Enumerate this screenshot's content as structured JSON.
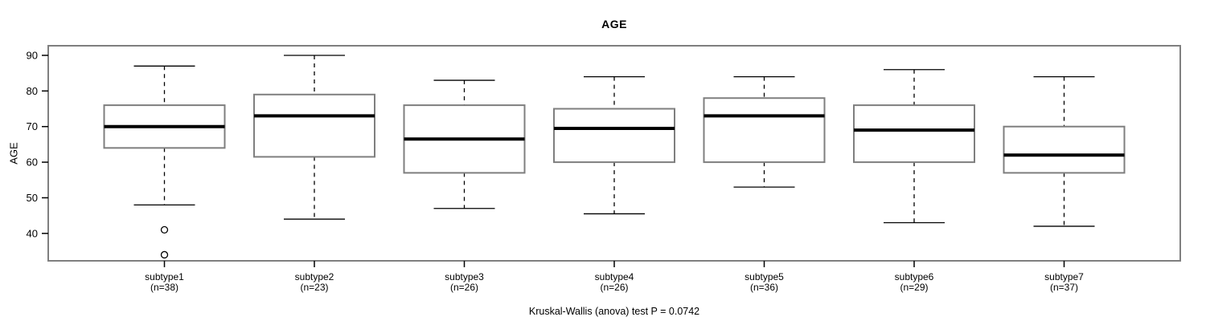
{
  "chart_data": {
    "type": "boxplot",
    "title": "AGE",
    "ylabel": "AGE",
    "xlabel": "",
    "footnote": "Kruskal-Wallis (anova) test P = 0.0742",
    "yticks": [
      40,
      50,
      60,
      70,
      80,
      90
    ],
    "ylim": [
      32.3,
      92.7
    ],
    "grid": false,
    "legend": "none",
    "categories": [
      "subtype1",
      "subtype2",
      "subtype3",
      "subtype4",
      "subtype5",
      "subtype6",
      "subtype7"
    ],
    "group_counts": [
      "(n=38)",
      "(n=23)",
      "(n=26)",
      "(n=26)",
      "(n=36)",
      "(n=29)",
      "(n=37)"
    ],
    "series": [
      {
        "label": "subtype1",
        "n": 38,
        "whisker_low": 48,
        "q1": 64,
        "median": 70,
        "q3": 76,
        "whisker_high": 87,
        "outliers": [
          41,
          34
        ]
      },
      {
        "label": "subtype2",
        "n": 23,
        "whisker_low": 44,
        "q1": 61.5,
        "median": 73,
        "q3": 79,
        "whisker_high": 90,
        "outliers": []
      },
      {
        "label": "subtype3",
        "n": 26,
        "whisker_low": 47,
        "q1": 57,
        "median": 66.5,
        "q3": 76,
        "whisker_high": 83,
        "outliers": []
      },
      {
        "label": "subtype4",
        "n": 26,
        "whisker_low": 45.5,
        "q1": 60,
        "median": 69.5,
        "q3": 75,
        "whisker_high": 84,
        "outliers": []
      },
      {
        "label": "subtype5",
        "n": 36,
        "whisker_low": 53,
        "q1": 60,
        "median": 73,
        "q3": 78,
        "whisker_high": 84,
        "outliers": []
      },
      {
        "label": "subtype6",
        "n": 29,
        "whisker_low": 43,
        "q1": 60,
        "median": 69,
        "q3": 76,
        "whisker_high": 86,
        "outliers": []
      },
      {
        "label": "subtype7",
        "n": 37,
        "whisker_low": 42,
        "q1": 57,
        "median": 62,
        "q3": 70,
        "whisker_high": 84,
        "outliers": []
      }
    ],
    "colors": {
      "box_border": "#7f7f7f",
      "box_fill": "#ffffff",
      "median": "#000000",
      "whisker": "#000000",
      "outlier": "#000000",
      "frame": "#7f7f7f",
      "tick": "#000000",
      "text": "#000000",
      "background": "#ffffff"
    }
  }
}
